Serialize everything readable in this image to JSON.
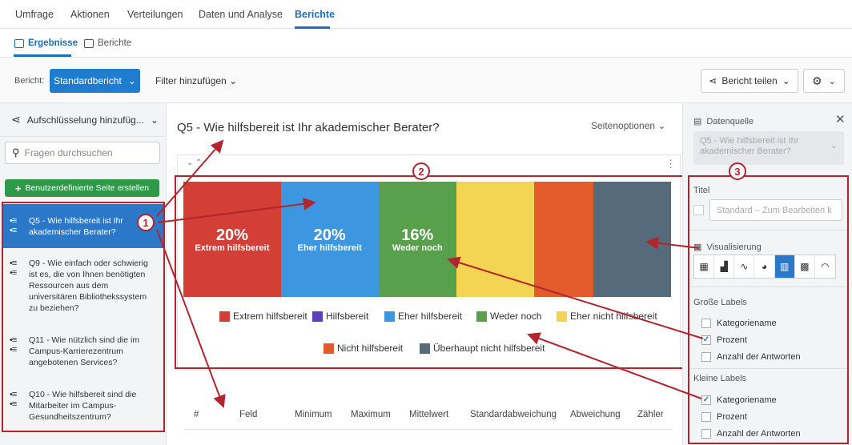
{
  "nav": {
    "tabs": [
      "Umfrage",
      "Aktionen",
      "Verteilungen",
      "Daten und Analyse",
      "Berichte"
    ],
    "active": "Berichte"
  },
  "subnav": {
    "results": "Ergebnisse",
    "reports": "Berichte"
  },
  "toolbar": {
    "report_label": "Bericht:",
    "report_value": "Standardbericht",
    "filter": "Filter hinzufügen",
    "share": "Bericht teilen"
  },
  "left": {
    "breakdown": "Aufschlüsselung hinzufüg...",
    "search_placeholder": "Fragen durchsuchen",
    "custom_page": "Benutzerdefinierte Seite erstellen",
    "questions": [
      "Q5 - Wie hilfsbereit ist Ihr akademischer Berater?",
      "Q9 - Wie einfach oder schwierig ist es, die von Ihnen benötigten Ressourcen aus dem universitären Bibliothekssystem zu beziehen?",
      "Q11 - Wie nützlich sind die im Campus-Karrierezentrum angebotenen Services?",
      "Q10 - Wie hilfsbereit sind die Mitarbeiter im Campus-Gesundheitszentrum?"
    ]
  },
  "main": {
    "title": "Q5 - Wie hilfsbereit ist Ihr akademischer Berater?",
    "page_options": "Seitenoptionen",
    "table_headers": [
      "#",
      "Feld",
      "Minimum",
      "Maximum",
      "Mittelwert",
      "Standardabweichung",
      "Abweichung",
      "Zähler"
    ]
  },
  "chart_data": {
    "type": "bar",
    "stacked": true,
    "orientation": "horizontal-100pct",
    "categories": [
      "Extrem hilfsbereit",
      "Hilfsbereit",
      "Eher hilfsbereit",
      "Weder noch",
      "Eher nicht hilfsbereit",
      "Nicht hilfsbereit",
      "Überhaupt nicht hilfsbereit"
    ],
    "series": [
      {
        "values": [
          20,
          0,
          20,
          16,
          16,
          12,
          16
        ]
      }
    ],
    "value_labels": [
      "20%",
      "",
      "20%",
      "16%",
      "",
      "",
      ""
    ],
    "category_labels": [
      "Extrem hilfsbereit",
      "",
      "Eher hilfsbereit",
      "Weder noch",
      "",
      "",
      ""
    ],
    "colors": [
      "#d33f36",
      "#5e3fbf",
      "#3d97e0",
      "#58a04b",
      "#f4d453",
      "#e35a2b",
      "#556b7b"
    ],
    "legend_placement": "bottom"
  },
  "right": {
    "datasource_label": "Datenquelle",
    "datasource_value": "Q5 - Wie hilfsbereit ist Ihr akademischer Berater?",
    "title_label": "Titel",
    "title_placeholder": "Standard – Zum Bearbeiten k",
    "viz_label": "Visualisierung",
    "big_labels": "Große Labels",
    "small_labels": "Kleine Labels",
    "big_options": [
      {
        "label": "Kategoriename",
        "checked": false
      },
      {
        "label": "Prozent",
        "checked": true
      },
      {
        "label": "Anzahl der Antworten",
        "checked": false
      }
    ],
    "small_options": [
      {
        "label": "Kategoriename",
        "checked": true
      },
      {
        "label": "Prozent",
        "checked": false
      },
      {
        "label": "Anzahl der Antworten",
        "checked": false
      }
    ]
  },
  "badges": [
    "1",
    "2",
    "3"
  ]
}
